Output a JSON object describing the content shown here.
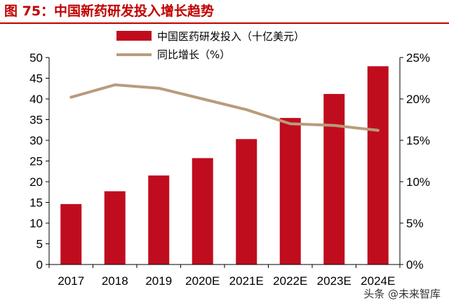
{
  "figure": {
    "title": "图 75：中国新药研发投入增长趋势",
    "watermark": "头条 @未来智库"
  },
  "colors": {
    "bar": "#c00d1e",
    "line": "#b89b7c",
    "title": "#c00000",
    "axis": "#000000"
  },
  "chart_data": {
    "type": "bar",
    "categories": [
      "2017",
      "2018",
      "2019",
      "2020E",
      "2021E",
      "2022E",
      "2023E",
      "2024E"
    ],
    "series": [
      {
        "name": "中国医药研发投入（十亿美元）",
        "type": "bar",
        "axis": "left",
        "values": [
          14.6,
          17.7,
          21.5,
          25.7,
          30.3,
          35.4,
          41.2,
          47.9
        ]
      },
      {
        "name": "同比增长（%）",
        "type": "line",
        "axis": "right",
        "values": [
          20.2,
          21.7,
          21.3,
          20.0,
          18.7,
          17.0,
          16.8,
          16.2
        ]
      }
    ],
    "y_left": {
      "min": 0,
      "max": 50,
      "step": 5,
      "ticks": [
        "0",
        "5",
        "10",
        "15",
        "20",
        "25",
        "30",
        "35",
        "40",
        "45",
        "50"
      ]
    },
    "y_right": {
      "min": 0,
      "max": 25,
      "step": 5,
      "ticks": [
        "0%",
        "5%",
        "10%",
        "15%",
        "20%",
        "25%"
      ]
    },
    "grid": false,
    "legend_position": "top-center"
  }
}
